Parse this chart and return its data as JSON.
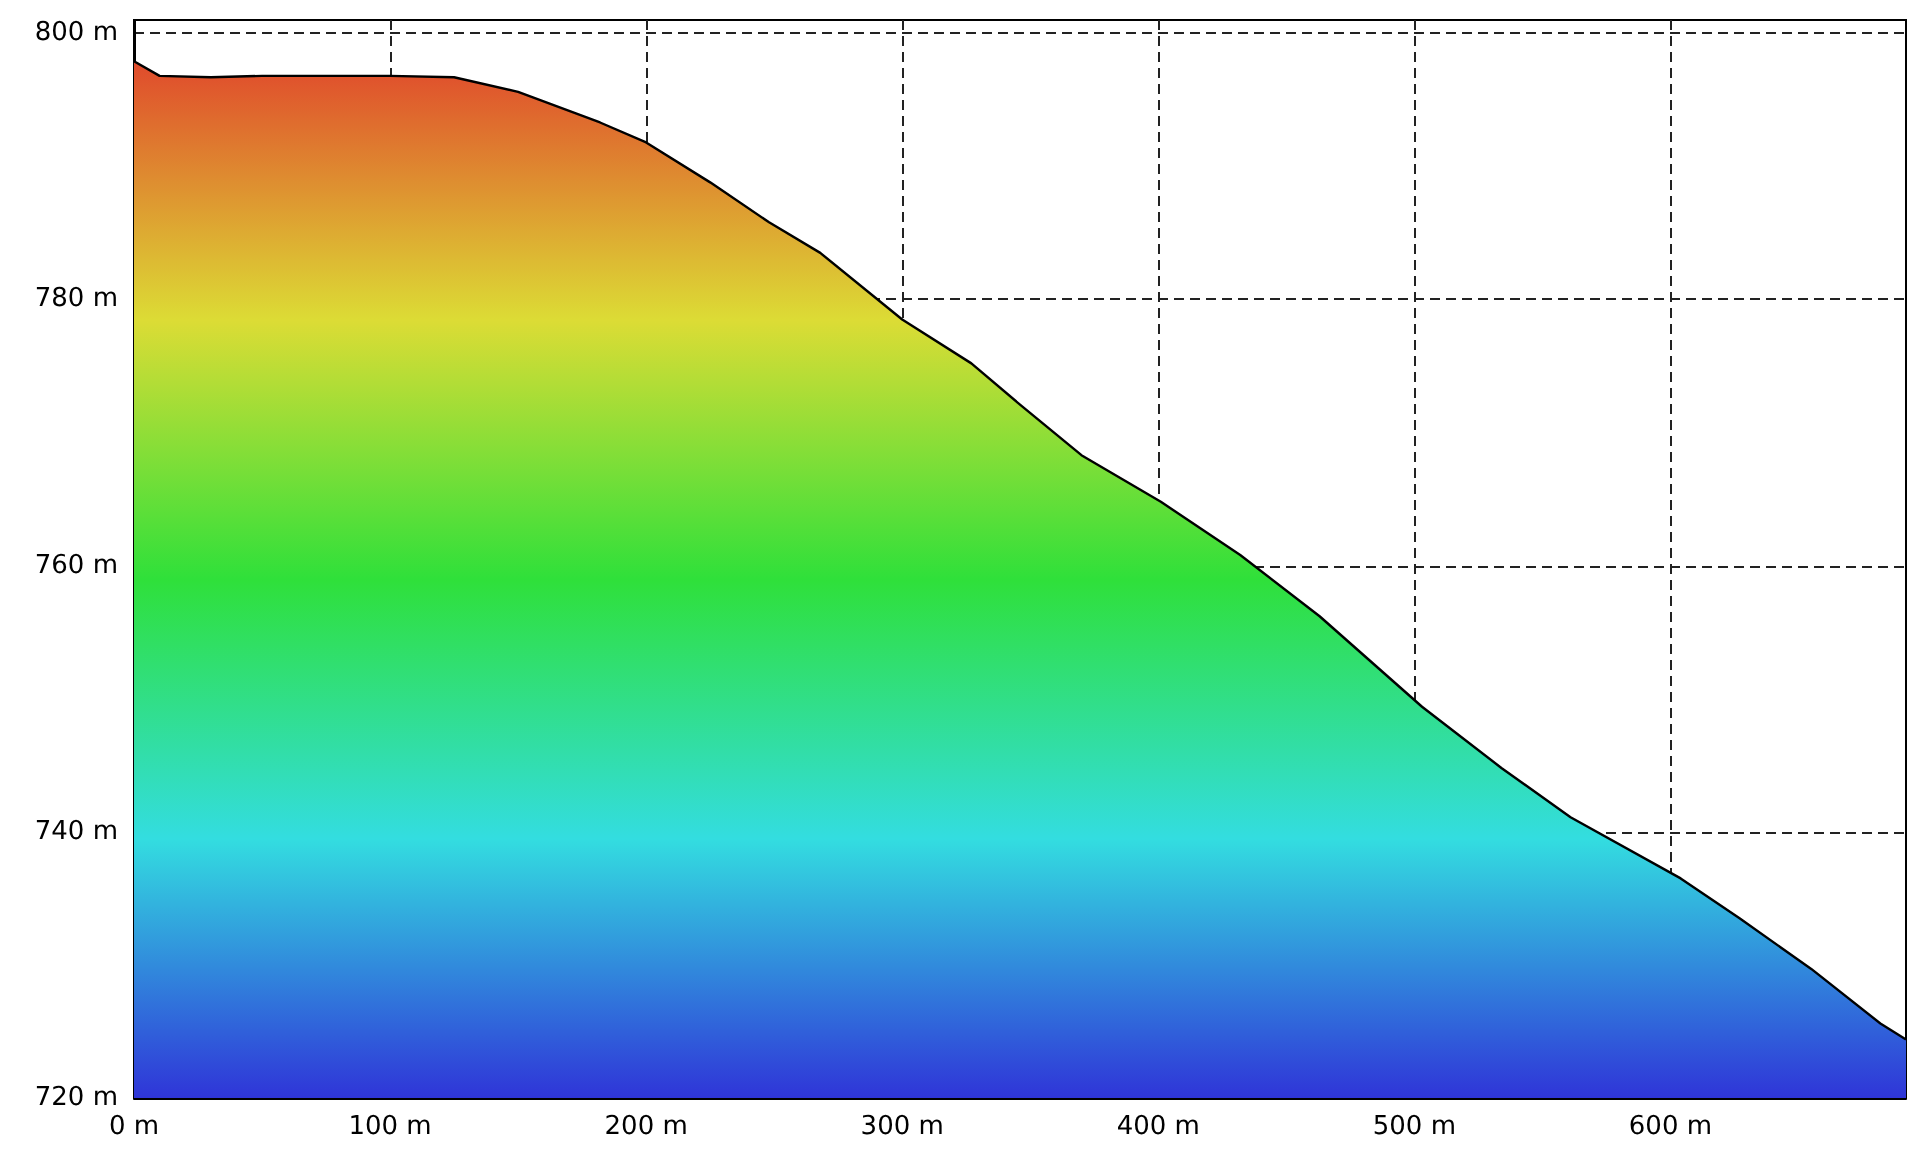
{
  "chart_data": {
    "type": "area",
    "x": [
      0,
      10,
      30,
      50,
      100,
      125,
      150,
      182,
      200,
      225,
      248,
      268,
      300,
      327,
      346,
      370,
      401,
      432,
      463,
      503,
      534,
      561,
      604,
      627,
      655,
      682,
      692
    ],
    "series": [
      {
        "color": "#000000",
        "values": [
          797.9,
          796.8,
          796.7,
          796.8,
          796.8,
          796.7,
          795.6,
          793.3,
          791.8,
          788.8,
          785.8,
          783.5,
          778.5,
          775.2,
          772.1,
          768.3,
          764.8,
          760.8,
          756.2,
          749.4,
          744.8,
          741.1,
          736.5,
          733.5,
          729.7,
          725.6,
          724.4
        ]
      }
    ],
    "xlim": [
      0,
      692
    ],
    "xticks": [
      {
        "value": 0,
        "label": "0 m"
      },
      {
        "value": 100,
        "label": "100 m"
      },
      {
        "value": 200,
        "label": "200 m"
      },
      {
        "value": 300,
        "label": "300 m"
      },
      {
        "value": 400,
        "label": "400 m"
      },
      {
        "value": 500,
        "label": "500 m"
      },
      {
        "value": 600,
        "label": "600 m"
      }
    ],
    "ylim": [
      720,
      801
    ],
    "yticks": [
      {
        "value": 720,
        "label": "720 m"
      },
      {
        "value": 740,
        "label": "740 m"
      },
      {
        "value": 760,
        "label": "760 m"
      },
      {
        "value": 780,
        "label": "780 m"
      },
      {
        "value": 800,
        "label": "800 m"
      }
    ],
    "grid": true,
    "line_style": "solid",
    "marker": "none"
  }
}
